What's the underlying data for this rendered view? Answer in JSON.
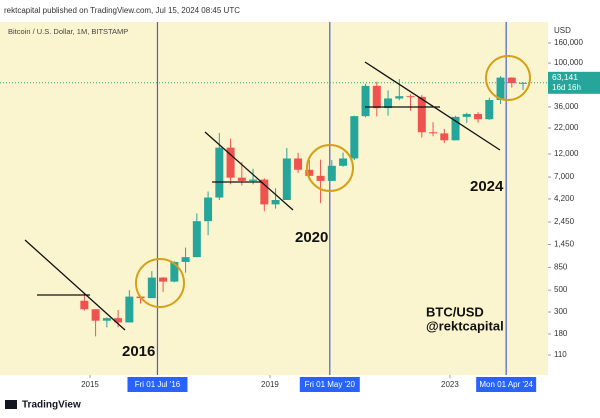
{
  "chart_data": {
    "type": "candlestick",
    "header": "rektcapital published on TradingView.com, Jul 15, 2024 08:45 UTC",
    "title": "Bitcoin / U.S. Dollar, 1M, BITSTAMP",
    "y_axis_label": "USD",
    "log_scale": true,
    "up_color": "#26a69a",
    "down_color": "#ef5350",
    "x": [
      2014.875,
      2015.125,
      2015.375,
      2015.625,
      2015.875,
      2016.125,
      2016.375,
      2016.625,
      2016.875,
      2017.125,
      2017.375,
      2017.625,
      2017.875,
      2018.125,
      2018.375,
      2018.625,
      2018.875,
      2019.125,
      2019.375,
      2019.625,
      2019.875,
      2020.125,
      2020.375,
      2020.625,
      2020.875,
      2021.125,
      2021.375,
      2021.625,
      2021.875,
      2022.125,
      2022.375,
      2022.625,
      2022.875,
      2023.125,
      2023.375,
      2023.625,
      2023.875,
      2024.125,
      2024.375,
      2024.625
    ],
    "open": [
      390,
      320,
      245,
      260,
      235,
      430,
      415,
      670,
      610,
      965,
      1080,
      2500,
      4340,
      13900,
      6900,
      6400,
      6600,
      3700,
      4100,
      10800,
      8300,
      7200,
      6400,
      9100,
      10800,
      29000,
      58800,
      35000,
      43800,
      46200,
      45500,
      19900,
      19400,
      16500,
      28500,
      30500,
      27000,
      42300,
      71300,
      62700
    ],
    "high": [
      460,
      320,
      265,
      315,
      500,
      440,
      780,
      680,
      980,
      1350,
      3000,
      5000,
      19600,
      17200,
      9900,
      8500,
      6800,
      5400,
      13800,
      12300,
      10400,
      10500,
      10400,
      12400,
      29300,
      61800,
      64800,
      52900,
      69000,
      48200,
      47400,
      25200,
      21500,
      29200,
      31400,
      31800,
      44700,
      73800,
      72000,
      64500
    ],
    "low": [
      310,
      170,
      210,
      210,
      235,
      365,
      415,
      480,
      600,
      750,
      1080,
      1800,
      4100,
      5900,
      5750,
      5900,
      3150,
      3350,
      4100,
      7700,
      6500,
      3800,
      6400,
      8900,
      10400,
      28200,
      28800,
      29300,
      42000,
      32900,
      17600,
      18100,
      15500,
      16500,
      24800,
      24900,
      26600,
      38500,
      56500,
      53500
    ],
    "close": [
      320,
      245,
      260,
      235,
      430,
      415,
      670,
      610,
      965,
      1080,
      2500,
      4340,
      13900,
      6900,
      6400,
      6600,
      3700,
      4100,
      10800,
      8300,
      7200,
      6400,
      9100,
      10800,
      29000,
      58800,
      35000,
      43800,
      46200,
      45500,
      19900,
      19400,
      16500,
      28500,
      30500,
      27000,
      42300,
      71300,
      62700,
      63141
    ],
    "xlim": [
      2013,
      2025.18
    ],
    "xticks": [
      2015,
      2019,
      2023
    ],
    "date_markers": [
      {
        "value": 2016.5,
        "label": "Fri 01 Jul '16"
      },
      {
        "value": 2020.33,
        "label": "Fri 01 May '20"
      },
      {
        "value": 2024.25,
        "label": "Mon 01 Apr '24"
      }
    ],
    "ylim": [
      69,
      261000
    ],
    "yticks": [
      {
        "value": 160000,
        "label": "160,000"
      },
      {
        "value": 100000,
        "label": "100,000"
      },
      {
        "value": 36000,
        "label": "36,000"
      },
      {
        "value": 22000,
        "label": "22,000"
      },
      {
        "value": 12000,
        "label": "12,000"
      },
      {
        "value": 7000,
        "label": "7,000"
      },
      {
        "value": 4200,
        "label": "4,200"
      },
      {
        "value": 2450,
        "label": "2,450"
      },
      {
        "value": 1450,
        "label": "1,450"
      },
      850,
      500,
      300,
      180,
      110
    ],
    "last_price": {
      "value": 63141,
      "label": "63,141"
    },
    "countdown": "16d 16h",
    "annotations": [
      "2016",
      "2020",
      "2024",
      "BTC/USD",
      "@rektcapital"
    ],
    "footer": "TradingView"
  }
}
